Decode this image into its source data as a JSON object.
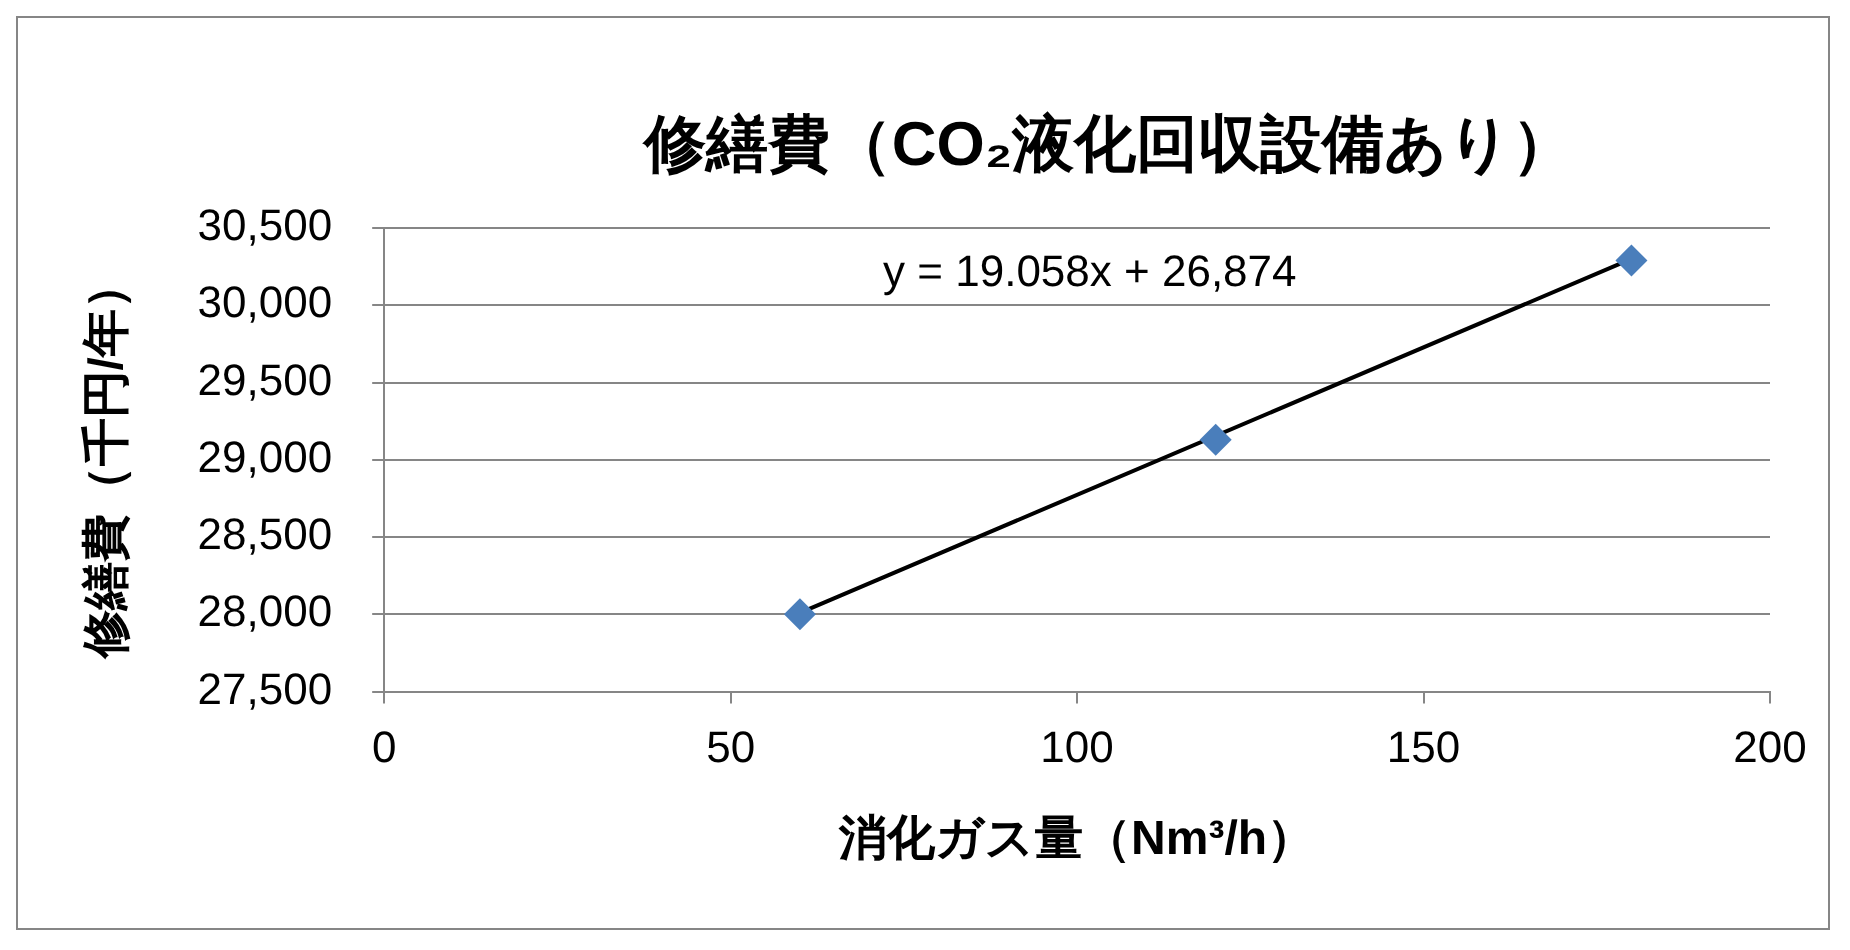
{
  "chart_data": {
    "type": "scatter",
    "title": "修繕費（CO₂液化回収設備あり）",
    "xlabel": "消化ガス量（Nm³/h）",
    "ylabel": "修繕費（千円/年）",
    "x": [
      60,
      120,
      180
    ],
    "series": [
      {
        "color": "#4a7ebb",
        "values": [
          28000,
          29130,
          30290
        ]
      },
      {
        "type": "line",
        "color": "#000000",
        "x": [
          60,
          180
        ],
        "values": [
          28010,
          30300
        ],
        "marker": "none"
      }
    ],
    "xlim": [
      0,
      200
    ],
    "xticks": [
      0,
      50,
      100,
      150,
      200
    ],
    "ylim": [
      27500,
      30500
    ],
    "yticks": [
      {
        "value": 27500,
        "label": "27,500"
      },
      {
        "value": 28000,
        "label": "28,000"
      },
      {
        "value": 28500,
        "label": "28,500"
      },
      {
        "value": 29000,
        "label": "29,000"
      },
      {
        "value": 29500,
        "label": "29,500"
      },
      {
        "value": 30000,
        "label": "30,000"
      },
      {
        "value": 30500,
        "label": "30,500"
      }
    ],
    "grid": "y",
    "legend": false,
    "marker": "diamond",
    "line_style": "solid",
    "annotations": [
      "y = 19.058x + 26,874"
    ]
  }
}
